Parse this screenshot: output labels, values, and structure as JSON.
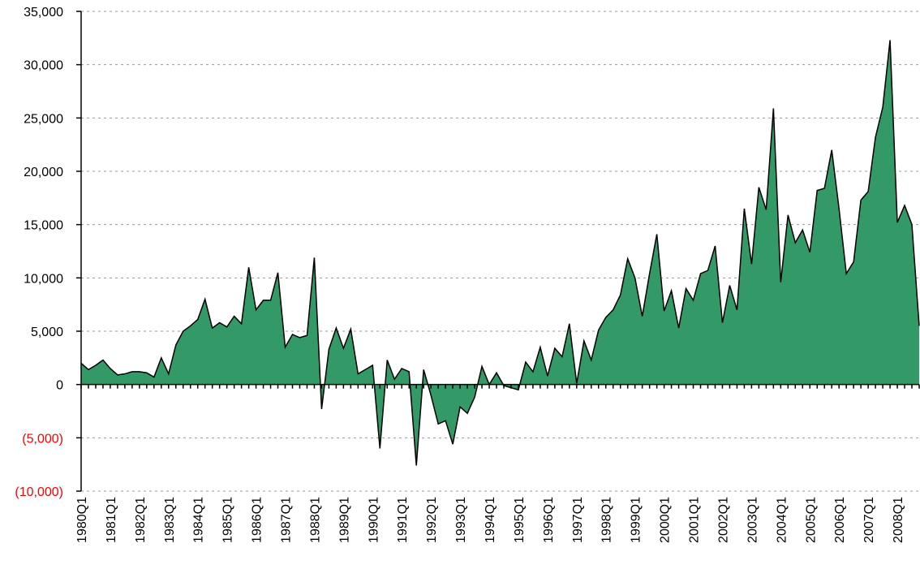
{
  "chart_data": {
    "type": "area",
    "categories": [
      "1980Q1",
      null,
      null,
      null,
      "1981Q1",
      null,
      null,
      null,
      "1982Q1",
      null,
      null,
      null,
      "1983Q1",
      null,
      null,
      null,
      "1984Q1",
      null,
      null,
      null,
      "1985Q1",
      null,
      null,
      null,
      "1986Q1",
      null,
      null,
      null,
      "1987Q1",
      null,
      null,
      null,
      "1988Q1",
      null,
      null,
      null,
      "1989Q1",
      null,
      null,
      null,
      "1990Q1",
      null,
      null,
      null,
      "1991Q1",
      null,
      null,
      null,
      "1992Q1",
      null,
      null,
      null,
      "1993Q1",
      null,
      null,
      null,
      "1994Q1",
      null,
      null,
      null,
      "1995Q1",
      null,
      null,
      null,
      "1996Q1",
      null,
      null,
      null,
      "1997Q1",
      null,
      null,
      null,
      "1998Q1",
      null,
      null,
      null,
      "1999Q1",
      null,
      null,
      null,
      "2000Q1",
      null,
      null,
      null,
      "2001Q1",
      null,
      null,
      null,
      "2002Q1",
      null,
      null,
      null,
      "2003Q1",
      null,
      null,
      null,
      "2004Q1",
      null,
      null,
      null,
      "2005Q1",
      null,
      null,
      null,
      "2006Q1",
      null,
      null,
      null,
      "2007Q1",
      null,
      null,
      null,
      "2008Q1",
      null,
      null,
      null
    ],
    "values": [
      2000,
      1400,
      1800,
      2300,
      1500,
      900,
      1000,
      1200,
      1200,
      1100,
      700,
      2500,
      1000,
      3700,
      5000,
      5500,
      6100,
      8000,
      5300,
      5800,
      5400,
      6400,
      5700,
      11000,
      7000,
      7900,
      7900,
      10500,
      3500,
      4700,
      4400,
      4600,
      11900,
      -2300,
      3300,
      5300,
      3400,
      5200,
      1000,
      1400,
      1800,
      -6000,
      2300,
      500,
      1500,
      1200,
      -7600,
      1400,
      -1000,
      -3700,
      -3400,
      -5600,
      -2100,
      -2700,
      -1200,
      1700,
      0,
      1100,
      -100,
      -300,
      -500,
      2100,
      1200,
      3500,
      800,
      3400,
      2600,
      5700,
      100,
      4100,
      2300,
      5100,
      6300,
      7000,
      8400,
      11800,
      10000,
      6400,
      10400,
      14100,
      6900,
      8800,
      5300,
      9000,
      7900,
      10400,
      10700,
      13000,
      5800,
      9300,
      7000,
      16500,
      11300,
      18500,
      16400,
      25900,
      9600,
      15900,
      13300,
      14500,
      12400,
      18200,
      18400,
      22000,
      16500,
      10400,
      11500,
      17300,
      18100,
      23200,
      26000,
      32300,
      15200,
      16800,
      15000,
      5500
    ],
    "color": "#339966",
    "line_color": "#000000",
    "negative_label_color": "#ff0000",
    "ylim": [
      -10000,
      35000
    ],
    "yticks": [
      {
        "value": -10000,
        "label": "(10,000)"
      },
      {
        "value": -5000,
        "label": "(5,000)"
      },
      0,
      {
        "value": 5000,
        "label": "5,000"
      },
      {
        "value": 10000,
        "label": "10,000"
      },
      {
        "value": 15000,
        "label": "15,000"
      },
      {
        "value": 20000,
        "label": "20,000"
      },
      {
        "value": 25000,
        "label": "25,000"
      },
      {
        "value": 30000,
        "label": "30,000"
      },
      {
        "value": 35000,
        "label": "35,000"
      }
    ],
    "grid": true
  }
}
